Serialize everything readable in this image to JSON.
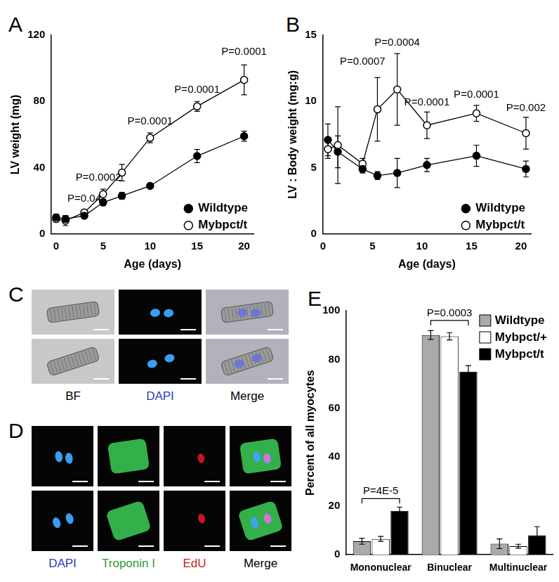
{
  "chart_data": [
    {
      "panel": "A",
      "type": "line",
      "x_label": "Age (days)",
      "y_label": "LV weight (mg)",
      "x": [
        0,
        1,
        3,
        5,
        7,
        10,
        15,
        20
      ],
      "xlim": [
        -0.5,
        21
      ],
      "xticks": [
        0,
        5,
        10,
        15,
        20
      ],
      "ylim": [
        0,
        120
      ],
      "yticks": [
        0,
        40,
        80,
        120
      ],
      "grid": false,
      "legend": "bottom right",
      "series": [
        {
          "name": "Wildtype",
          "color": "#000000",
          "marker": "filled",
          "values": [
            10,
            9,
            11,
            19,
            23,
            29,
            47,
            59
          ],
          "errors": [
            2,
            2,
            1,
            2,
            2,
            1,
            4,
            3
          ]
        },
        {
          "name": "Mybpct/t",
          "color": "#000000",
          "marker": "open",
          "values": [
            9,
            8,
            13,
            24,
            37,
            58,
            77,
            93
          ],
          "errors": [
            1,
            3,
            1,
            3,
            5,
            3,
            3,
            9
          ]
        }
      ],
      "annotations": [
        {
          "text": "P=0.04",
          "x": 3,
          "y": 21
        },
        {
          "text": "P=0.0002",
          "x": 4.5,
          "y": 34
        },
        {
          "text": "P=0.0001",
          "x": 10,
          "y": 68
        },
        {
          "text": "P=0.0001",
          "x": 15,
          "y": 87
        },
        {
          "text": "P=0.0001",
          "x": 20,
          "y": 110
        }
      ]
    },
    {
      "panel": "B",
      "type": "line",
      "x_label": "Age (days)",
      "y_label": "LV : Body weight (mg:g)",
      "x": [
        0.5,
        1.5,
        4,
        5.5,
        7.5,
        10.5,
        15.5,
        20.5
      ],
      "xlim": [
        0,
        21
      ],
      "xticks": [
        0,
        5,
        10,
        15,
        20
      ],
      "ylim": [
        0,
        15
      ],
      "yticks": [
        0,
        5,
        10,
        15
      ],
      "grid": false,
      "legend": "bottom right",
      "series": [
        {
          "name": "Wildtype",
          "color": "#000000",
          "marker": "filled",
          "values": [
            7.1,
            6.2,
            4.9,
            4.4,
            4.6,
            5.2,
            5.9,
            4.9
          ],
          "errors": [
            1.2,
            1.2,
            0.3,
            0.3,
            1.1,
            0.5,
            0.8,
            0.6
          ]
        },
        {
          "name": "Mybpct/t",
          "color": "#000000",
          "marker": "open",
          "values": [
            6.4,
            6.7,
            5.3,
            9.4,
            10.9,
            8.2,
            9.1,
            7.6
          ],
          "errors": [
            0.7,
            2.9,
            0.4,
            2.4,
            2.7,
            1.0,
            0.6,
            1.2
          ]
        }
      ],
      "annotations": [
        {
          "text": "P=0.0007",
          "x": 4,
          "y": 13.0
        },
        {
          "text": "P=0.0004",
          "x": 7.5,
          "y": 14.4
        },
        {
          "text": "P=0.0001",
          "x": 10.5,
          "y": 9.9
        },
        {
          "text": "P=0.0001",
          "x": 15.5,
          "y": 10.5
        },
        {
          "text": "P=0.002",
          "x": 20.5,
          "y": 9.5
        }
      ]
    },
    {
      "panel": "E",
      "type": "bar",
      "y_label": "Percent of all myocytes",
      "categories": [
        "Mononuclear",
        "Binuclear",
        "Multinuclear"
      ],
      "ylim": [
        0,
        100
      ],
      "yticks": [
        0,
        20,
        40,
        60,
        80,
        100
      ],
      "grid": false,
      "legend": "top right",
      "series": [
        {
          "name": "Wildtype",
          "color": "#aaaaaa",
          "values": [
            5.5,
            90,
            4.5
          ],
          "errors": [
            1.2,
            1.8,
            2.0
          ]
        },
        {
          "name": "Mybpct/+",
          "color": "#ffffff",
          "values": [
            6.5,
            89.5,
            3.5
          ],
          "errors": [
            1.0,
            1.5,
            0.8
          ]
        },
        {
          "name": "Mybpct/t",
          "color": "#000000",
          "values": [
            18,
            75,
            8
          ],
          "errors": [
            1.5,
            2.5,
            3.5
          ]
        }
      ],
      "annotations": [
        {
          "text": "P=4E-5",
          "category": "Mononuclear",
          "from": "Wildtype",
          "to": "Mybpct/t",
          "y": 23
        },
        {
          "text": "P=0.0003",
          "category": "Binuclear",
          "from": "Wildtype",
          "to": "Mybpct/t",
          "y": 96
        }
      ]
    }
  ],
  "micrographs": [
    {
      "panel": "C",
      "rows": 2,
      "channels": [
        {
          "label": "BF",
          "color": "#000000"
        },
        {
          "label": "DAPI",
          "color": "#1f3fbf"
        },
        {
          "label": "Merge",
          "color": "#000000"
        }
      ]
    },
    {
      "panel": "D",
      "rows": 2,
      "channels": [
        {
          "label": "DAPI",
          "color": "#1f3fbf"
        },
        {
          "label": "Troponin I",
          "color": "#2e9e2e"
        },
        {
          "label": "EdU",
          "color": "#c81e1e"
        },
        {
          "label": "Merge",
          "color": "#000000"
        }
      ]
    }
  ]
}
